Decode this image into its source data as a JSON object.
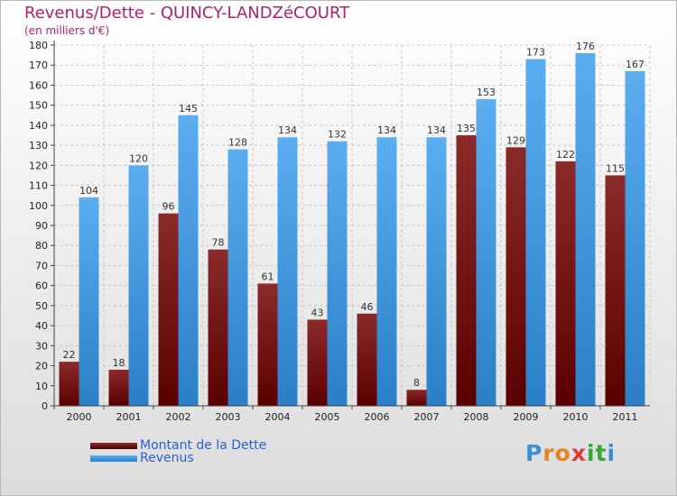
{
  "header": {
    "title": "Revenus/Dette - QUINCY-LANDZéCOURT",
    "subtitle": "(en milliers d'€)"
  },
  "chart_data": {
    "type": "bar",
    "title": "Revenus/Dette - QUINCY-LANDZéCOURT",
    "subtitle": "(en milliers d'€)",
    "categories": [
      "2000",
      "2001",
      "2002",
      "2003",
      "2004",
      "2005",
      "2006",
      "2007",
      "2008",
      "2009",
      "2010",
      "2011"
    ],
    "series": [
      {
        "name": "Montant de la Dette",
        "color": "#7a1414",
        "values": [
          22,
          18,
          96,
          78,
          61,
          43,
          46,
          8,
          135,
          129,
          122,
          115
        ]
      },
      {
        "name": "Revenus",
        "color": "#3d9ae0",
        "values": [
          104,
          120,
          145,
          128,
          134,
          132,
          134,
          134,
          153,
          173,
          176,
          167
        ]
      }
    ],
    "ylim": [
      0,
      180
    ],
    "yticks": [
      0,
      10,
      20,
      30,
      40,
      50,
      60,
      70,
      80,
      90,
      100,
      110,
      120,
      130,
      140,
      150,
      160,
      170,
      180
    ],
    "grid": true,
    "legend": "bottom-left"
  },
  "logo": {
    "letters": [
      {
        "ch": "P",
        "color": "#3a8fd8"
      },
      {
        "ch": "r",
        "color": "#e8841e"
      },
      {
        "ch": "o",
        "color": "#e8841e"
      },
      {
        "ch": "x",
        "color": "#e23a3a"
      },
      {
        "ch": "i",
        "color": "#36a636"
      },
      {
        "ch": "t",
        "color": "#36a636"
      },
      {
        "ch": "i",
        "color": "#3a8fd8"
      }
    ]
  }
}
